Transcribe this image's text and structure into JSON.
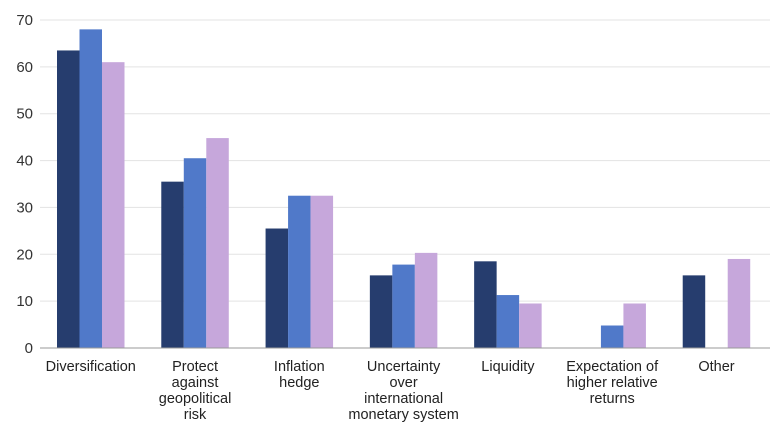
{
  "chart_data": {
    "type": "bar",
    "categories": [
      "Diversification",
      "Protect against geopolitical risk",
      "Inflation hedge",
      "Uncertainty over international monetary system",
      "Liquidity",
      "Expectation of higher relative returns",
      "Other"
    ],
    "category_lines": [
      [
        "Diversification"
      ],
      [
        "Protect",
        "against",
        "geopolitical",
        "risk"
      ],
      [
        "Inflation",
        "hedge"
      ],
      [
        "Uncertainty",
        "over",
        "international",
        "monetary system"
      ],
      [
        "Liquidity"
      ],
      [
        "Expectation of",
        "higher relative",
        "returns"
      ],
      [
        "Other"
      ]
    ],
    "series": [
      {
        "color": "#263d6e",
        "values": [
          63.5,
          35.5,
          25.5,
          15.5,
          18.5,
          null,
          15.5
        ]
      },
      {
        "color": "#5079c9",
        "values": [
          68,
          40.5,
          32.5,
          17.8,
          11.3,
          4.8,
          null
        ]
      },
      {
        "color": "#c6a7db",
        "values": [
          61,
          44.8,
          32.5,
          20.3,
          9.5,
          9.5,
          19
        ]
      }
    ],
    "ylim": [
      0,
      70
    ],
    "yticks": [
      0,
      10,
      20,
      30,
      40,
      50,
      60,
      70
    ],
    "grid": true,
    "legend": "none"
  }
}
